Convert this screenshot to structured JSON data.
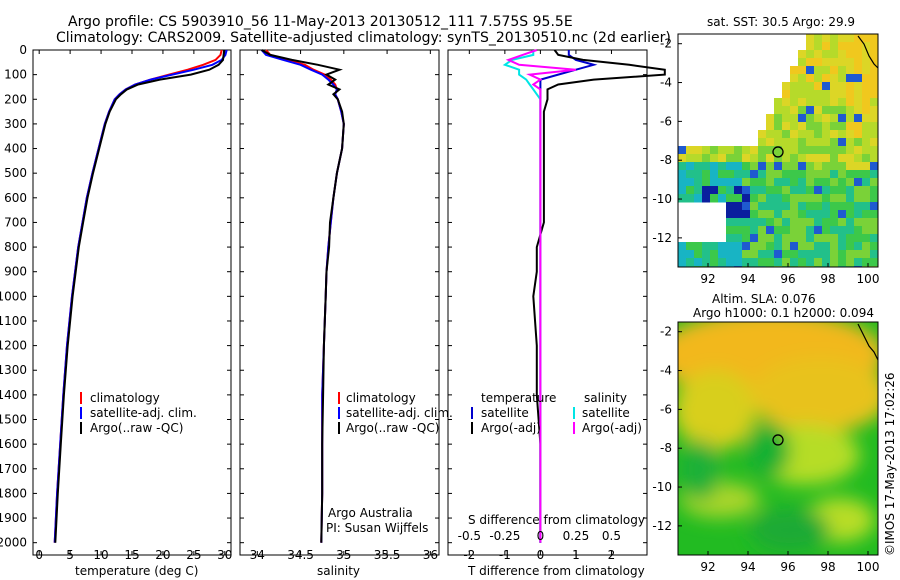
{
  "title": {
    "line1": "Argo profile: CS 5903910_56 11-May-2013 20130512_111 7.575S 95.5E",
    "line2": "Climatology: CARS2009. Satellite-adjusted climatology: synTS_20130510.nc (2d earlier)"
  },
  "depth_ticks": [
    "0",
    "100",
    "200",
    "300",
    "400",
    "500",
    "600",
    "700",
    "800",
    "900",
    "1000",
    "1100",
    "1200",
    "1300",
    "1400",
    "1500",
    "1600",
    "1700",
    "1800",
    "1900",
    "2000"
  ],
  "colors": {
    "climatology": "#ff0000",
    "satellite": "#0000ff",
    "argo": "#000000",
    "sat_salt": "#00e5e5",
    "argo_salt": "#ff00ff",
    "sat_temp_dark": "#0000cc"
  },
  "chart_data": [
    {
      "type": "line",
      "name": "temperature",
      "xlabel": "temperature (deg C)",
      "ylabel": "depth",
      "xlim": [
        -1,
        31
      ],
      "ylim": [
        2050,
        0
      ],
      "xticks": [
        "0",
        "5",
        "10",
        "15",
        "20",
        "25",
        "30"
      ],
      "depth": [
        0,
        20,
        40,
        60,
        80,
        100,
        120,
        140,
        160,
        180,
        200,
        250,
        300,
        400,
        500,
        600,
        700,
        800,
        900,
        1000,
        1200,
        1400,
        1600,
        1800,
        2000
      ],
      "series": [
        {
          "name": "climatology",
          "values": [
            29.5,
            29.3,
            28.5,
            26.5,
            24.0,
            21.0,
            18.0,
            15.5,
            14.0,
            13.0,
            12.2,
            11.3,
            10.6,
            9.6,
            8.6,
            7.7,
            7.0,
            6.3,
            5.8,
            5.3,
            4.5,
            3.9,
            3.4,
            2.9,
            2.5
          ]
        },
        {
          "name": "satellite-adj. clim.",
          "values": [
            30.3,
            30.1,
            29.5,
            28.0,
            25.0,
            21.5,
            18.0,
            15.5,
            14.0,
            13.0,
            12.2,
            11.3,
            10.6,
            9.6,
            8.6,
            7.7,
            7.0,
            6.3,
            5.8,
            5.3,
            4.5,
            3.9,
            3.4,
            2.9,
            2.5
          ]
        },
        {
          "name": "Argo(..raw -QC)",
          "values": [
            29.9,
            29.8,
            29.7,
            29.0,
            27.5,
            24.5,
            19.5,
            16.0,
            14.2,
            13.2,
            12.4,
            11.4,
            10.7,
            9.7,
            8.7,
            7.8,
            7.1,
            6.4,
            5.9,
            5.4,
            4.6,
            4.0,
            3.5,
            3.0,
            2.6
          ]
        }
      ],
      "legend": [
        "climatology",
        "satellite-adj. clim.",
        "Argo(..raw -QC)"
      ]
    },
    {
      "type": "line",
      "name": "salinity",
      "xlabel": "salinity",
      "xlim": [
        33.8,
        36.1
      ],
      "ylim": [
        2050,
        0
      ],
      "xticks": [
        "34",
        "34.5",
        "35",
        "35.5",
        "36"
      ],
      "depth": [
        0,
        20,
        40,
        60,
        80,
        100,
        120,
        140,
        160,
        180,
        200,
        250,
        300,
        400,
        500,
        600,
        700,
        800,
        900,
        1000,
        1200,
        1400,
        1600,
        1800,
        2000
      ],
      "series": [
        {
          "name": "climatology",
          "values": [
            34.1,
            34.15,
            34.35,
            34.55,
            34.65,
            34.78,
            34.85,
            34.9,
            34.92,
            34.9,
            34.93,
            34.97,
            35.0,
            34.98,
            34.92,
            34.88,
            34.85,
            34.82,
            34.8,
            34.79,
            34.77,
            34.75,
            34.75,
            34.75,
            34.74
          ]
        },
        {
          "name": "satellite-adj. clim.",
          "values": [
            34.05,
            34.1,
            34.3,
            34.5,
            34.62,
            34.75,
            34.82,
            34.88,
            34.92,
            34.9,
            34.93,
            34.97,
            35.0,
            34.98,
            34.92,
            34.88,
            34.85,
            34.82,
            34.8,
            34.79,
            34.77,
            34.75,
            34.75,
            34.75,
            34.74
          ]
        },
        {
          "name": "Argo(..raw -QC)",
          "values": [
            34.05,
            34.15,
            34.4,
            34.7,
            34.95,
            34.8,
            34.9,
            34.82,
            34.95,
            34.88,
            34.93,
            34.98,
            35.0,
            34.98,
            34.92,
            34.88,
            34.84,
            34.83,
            34.8,
            34.79,
            34.77,
            34.76,
            34.75,
            34.75,
            34.74
          ]
        }
      ],
      "legend": [
        "climatology",
        "satellite-adj. clim.",
        "Argo(..raw -QC)"
      ],
      "annotation": [
        "Argo Australia",
        "PI: Susan Wijffels"
      ]
    },
    {
      "type": "line",
      "name": "differences",
      "xlabel": "T difference from climatology",
      "xlabel_top": "S difference from climatology",
      "xlim": [
        -2.6,
        3.0
      ],
      "ylim": [
        2050,
        0
      ],
      "xticks": [
        "-2",
        "-1",
        "0",
        "1",
        "2"
      ],
      "xticks_S": [
        "-0.5",
        "-0.25",
        "0",
        "0.25",
        "0.5"
      ],
      "depth": [
        0,
        20,
        40,
        60,
        80,
        100,
        120,
        140,
        160,
        180,
        200,
        250,
        300,
        400,
        500,
        600,
        700,
        800,
        900,
        1000,
        1200,
        1400,
        1600,
        1800,
        2000
      ],
      "series": [
        {
          "name": "temperature satellite",
          "values": [
            0.8,
            0.8,
            1.0,
            1.5,
            1.0,
            0.5,
            0.0,
            0.0,
            0.0,
            0.0,
            0.0,
            0.0,
            0.0,
            0.0,
            0.0,
            0.0,
            0.0,
            0.0,
            0.0,
            0.0,
            0.0,
            0.0,
            0.0,
            0.0,
            0.0
          ]
        },
        {
          "name": "temperature Argo(-adj)",
          "values": [
            0.4,
            0.5,
            1.2,
            2.5,
            3.5,
            3.5,
            1.5,
            0.5,
            0.2,
            0.2,
            0.2,
            0.1,
            0.1,
            0.1,
            0.1,
            0.1,
            0.1,
            -0.1,
            -0.1,
            -0.2,
            -0.1,
            -0.1,
            0.0,
            0.0,
            0.0
          ]
        },
        {
          "name": "salinity satellite",
          "values": [
            -0.2,
            -0.2,
            -0.8,
            -1.0,
            -0.6,
            -0.6,
            -0.4,
            -0.3,
            -0.2,
            -0.1,
            0.0,
            0.0,
            0.0,
            0.0,
            0.0,
            0.0,
            0.0,
            0.0,
            0.0,
            0.0,
            0.0,
            0.0,
            0.0,
            0.0,
            0.0
          ]
        },
        {
          "name": "salinity Argo(-adj)",
          "values": [
            -0.1,
            -0.5,
            -0.9,
            -0.6,
            1.0,
            -0.3,
            0.0,
            -0.2,
            0.0,
            0.0,
            0.0,
            0.0,
            0.0,
            0.0,
            0.0,
            0.0,
            0.0,
            0.0,
            0.0,
            0.0,
            0.0,
            0.0,
            0.0,
            0.0,
            0.0
          ]
        }
      ],
      "legend": {
        "temp_header": "temperature",
        "salt_header": "salinity",
        "temp_items": [
          "satellite",
          "Argo(-adj)"
        ],
        "salt_items": [
          "satellite",
          "Argo(-adj)"
        ]
      }
    },
    {
      "type": "heatmap",
      "name": "sst_map",
      "title": "sat. SST: 30.5 Argo: 29.9",
      "xlim": [
        90.5,
        100.5
      ],
      "ylim": [
        -13.5,
        -1.5
      ],
      "xticks": [
        "92",
        "94",
        "96",
        "98",
        "100"
      ],
      "yticks": [
        "-2",
        "-4",
        "-6",
        "-8",
        "-10",
        "-12"
      ],
      "marker": {
        "lon": 95.5,
        "lat": -7.575
      }
    },
    {
      "type": "heatmap",
      "name": "sla_map",
      "title_line1": "Altim. SLA: 0.076",
      "title_line2": "Argo h1000: 0.1 h2000: 0.094",
      "xlim": [
        90.5,
        100.5
      ],
      "ylim": [
        -13.5,
        -1.5
      ],
      "xticks": [
        "92",
        "94",
        "96",
        "98",
        "100"
      ],
      "yticks": [
        "-2",
        "-4",
        "-6",
        "-8",
        "-10",
        "-12"
      ],
      "marker": {
        "lon": 95.5,
        "lat": -7.575
      }
    }
  ],
  "footer": "©IMOS 17-May-2013 17:02:26"
}
